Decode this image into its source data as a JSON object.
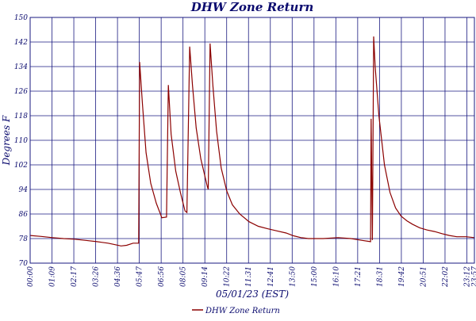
{
  "chart_data": {
    "type": "line",
    "title": "DHW Zone Return",
    "xlabel": "05/01/23 (EST)",
    "ylabel": "Degrees F",
    "ylim": [
      70,
      150
    ],
    "yticks": [
      70,
      78,
      86,
      94,
      102,
      110,
      118,
      126,
      134,
      142,
      150
    ],
    "xlim_hours": [
      0,
      23.95
    ],
    "xticks": [
      "00:00",
      "01:09",
      "02:17",
      "03:26",
      "04:36",
      "05:47",
      "06:56",
      "08:05",
      "09:14",
      "10:22",
      "11:31",
      "12:41",
      "13:50",
      "15:00",
      "16:10",
      "17:21",
      "18:31",
      "19:42",
      "20:51",
      "22:02",
      "23:12",
      "23:57"
    ],
    "grid": true,
    "legend_position": "bottom-center",
    "colors": {
      "line": "#8b0000",
      "grid": "#1a1a80",
      "text": "#0a0a6e"
    },
    "series": [
      {
        "name": "DHW Zone Return",
        "time_hours": [
          0.0,
          0.6,
          1.2,
          1.8,
          2.4,
          3.0,
          3.6,
          4.2,
          4.6,
          4.9,
          5.2,
          5.55,
          5.85,
          5.9,
          6.05,
          6.25,
          6.5,
          6.8,
          7.1,
          7.35,
          7.45,
          7.6,
          7.85,
          8.1,
          8.35,
          8.45,
          8.6,
          8.75,
          8.95,
          9.2,
          9.45,
          9.55,
          9.6,
          9.7,
          9.85,
          10.05,
          10.3,
          10.6,
          10.9,
          11.3,
          11.8,
          12.3,
          12.8,
          13.3,
          13.8,
          14.2,
          14.6,
          15.0,
          15.8,
          16.6,
          17.3,
          17.9,
          18.35,
          18.38,
          18.45,
          18.52,
          18.6,
          18.8,
          19.1,
          19.4,
          19.7,
          20.0,
          20.3,
          20.6,
          21.0,
          21.4,
          21.8,
          22.2,
          22.6,
          23.0,
          23.5,
          23.95
        ],
        "values": [
          79.0,
          78.7,
          78.3,
          78.0,
          77.8,
          77.4,
          77.0,
          76.5,
          76.0,
          75.6,
          75.8,
          76.5,
          76.5,
          135.5,
          122.0,
          106.0,
          96.0,
          89.5,
          84.8,
          85.0,
          128.0,
          112.0,
          100.0,
          93.0,
          87.0,
          86.5,
          140.5,
          128.0,
          114.0,
          104.0,
          97.5,
          95.0,
          94.0,
          141.5,
          128.0,
          113.0,
          101.0,
          93.5,
          89.0,
          86.0,
          83.5,
          82.0,
          81.2,
          80.5,
          79.8,
          78.9,
          78.3,
          78.0,
          78.0,
          78.3,
          78.0,
          77.4,
          77.0,
          117.0,
          77.5,
          143.8,
          134.0,
          118.0,
          102.0,
          93.0,
          88.0,
          85.3,
          83.8,
          82.7,
          81.5,
          80.8,
          80.3,
          79.6,
          79.0,
          78.6,
          78.6,
          78.3
        ]
      }
    ]
  }
}
